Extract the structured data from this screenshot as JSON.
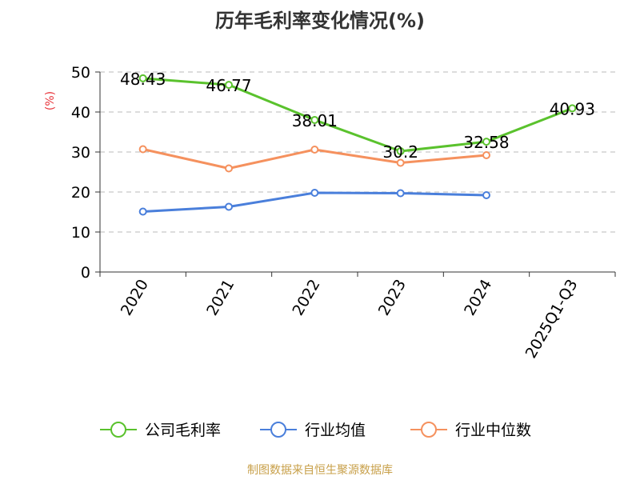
{
  "chart_data": {
    "type": "line",
    "title": "历年毛利率变化情况(%)",
    "ylabel": "(%)",
    "xlabel": "",
    "categories": [
      "2020",
      "2021",
      "2022",
      "2023",
      "2024",
      "2025Q1-Q3"
    ],
    "ylim": [
      0,
      50
    ],
    "yticks": [
      0,
      10,
      20,
      30,
      40,
      50
    ],
    "grid": true,
    "legend_position": "bottom",
    "series": [
      {
        "name": "公司毛利率",
        "color": "#5ac22d",
        "values": [
          48.43,
          46.77,
          38.01,
          30.2,
          32.58,
          40.93
        ],
        "labels": [
          "48.43",
          "46.77",
          "38.01",
          "30.2",
          "32.58",
          "40.93"
        ]
      },
      {
        "name": "行业均值",
        "color": "#4a7fdb",
        "values": [
          15.1,
          16.3,
          19.8,
          19.7,
          19.2,
          null
        ]
      },
      {
        "name": "行业中位数",
        "color": "#f5915e",
        "values": [
          30.7,
          25.9,
          30.6,
          27.3,
          29.2,
          null
        ]
      }
    ]
  },
  "axis_color": "#333333",
  "grid_color": "#bbbbbb",
  "ylabel_color": "#e8353b",
  "source": {
    "text": "制图数据来自恒生聚源数据库",
    "color": "#c8a04a"
  }
}
